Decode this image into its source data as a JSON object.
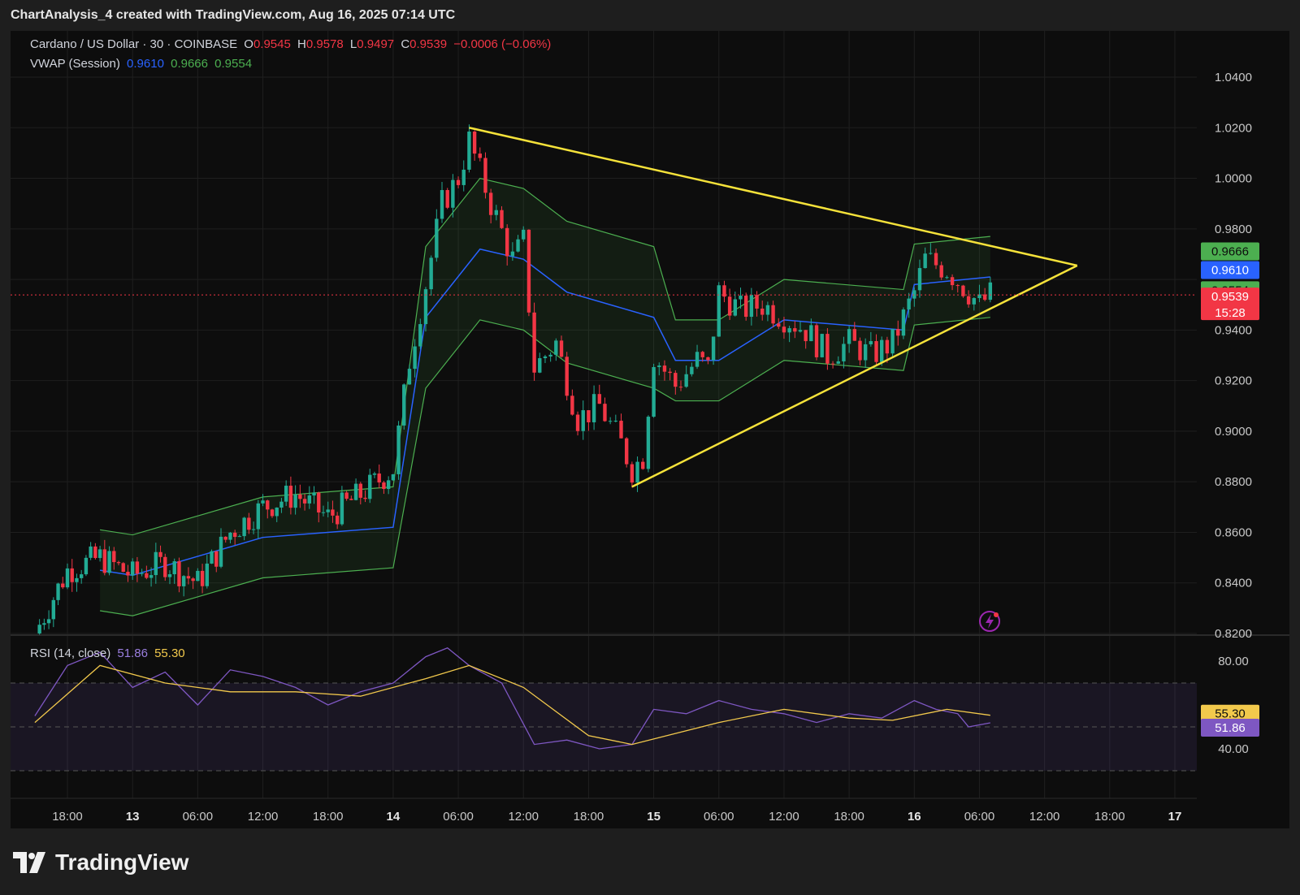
{
  "header": {
    "attribution": "ChartAnalysis_4 created with TradingView.com, Aug 16, 2025 07:14 UTC"
  },
  "legend": {
    "symbol": "Cardano / US Dollar · 30 · COINBASE",
    "open_label": "O",
    "open": "0.9545",
    "high_label": "H",
    "high": "0.9578",
    "low_label": "L",
    "low": "0.9497",
    "close_label": "C",
    "close": "0.9539",
    "change": "−0.0006 (−0.06%)",
    "vwap_label": "VWAP (Session)",
    "vwap_mid": "0.9610",
    "vwap_upper": "0.9666",
    "vwap_lower": "0.9554",
    "rsi_label": "RSI (14, close)",
    "rsi_value": "51.86",
    "rsi_ma": "55.30"
  },
  "price_badges": {
    "upper": "0.9666",
    "mid": "0.9610",
    "lower": "0.9554",
    "last": "0.9539",
    "countdown": "15:28",
    "rsi_ma": "55.30",
    "rsi": "51.86"
  },
  "footer": {
    "brand": "TradingView"
  },
  "colors": {
    "up": "#22ab94",
    "down": "#f23645",
    "vwap": "#2962ff",
    "band": "#4caf50",
    "triangle": "#f5e23a",
    "rsi": "#7e57c2",
    "rsi_ma": "#f2c94c"
  },
  "chart_data": {
    "type": "candlestick",
    "title": "Cardano / US Dollar · 30 · COINBASE",
    "y_ticks": [
      0.82,
      0.84,
      0.86,
      0.88,
      0.9,
      0.92,
      0.94,
      0.96,
      0.98,
      1.0,
      1.02,
      1.04
    ],
    "y_tick_labels": [
      "0.8200",
      "0.8400",
      "0.8600",
      "0.8800",
      "0.9000",
      "0.9200",
      "0.9400",
      "",
      "0.9800",
      "1.0000",
      "1.0200",
      "1.0400"
    ],
    "ylim": [
      0.82,
      1.06
    ],
    "x_tick_labels": [
      "18:00",
      "13",
      "06:00",
      "12:00",
      "18:00",
      "14",
      "06:00",
      "12:00",
      "18:00",
      "15",
      "06:00",
      "12:00",
      "18:00",
      "16",
      "06:00",
      "12:00",
      "18:00",
      "17"
    ],
    "x_tick_times": [
      "Aug 12 18:00",
      "Aug 13 00:00",
      "Aug 13 06:00",
      "Aug 13 12:00",
      "Aug 13 18:00",
      "Aug 14 00:00",
      "Aug 14 06:00",
      "Aug 14 12:00",
      "Aug 14 18:00",
      "Aug 15 00:00",
      "Aug 15 06:00",
      "Aug 15 12:00",
      "Aug 15 18:00",
      "Aug 16 00:00",
      "Aug 16 06:00",
      "Aug 16 12:00",
      "Aug 16 18:00",
      "Aug 17 00:00"
    ],
    "close_path": [
      {
        "t": "Aug 12 15:00",
        "c": 0.82
      },
      {
        "t": "Aug 12 18:00",
        "c": 0.845
      },
      {
        "t": "Aug 12 21:00",
        "c": 0.85
      },
      {
        "t": "Aug 13 00:00",
        "c": 0.843
      },
      {
        "t": "Aug 13 03:00",
        "c": 0.848
      },
      {
        "t": "Aug 13 06:00",
        "c": 0.84
      },
      {
        "t": "Aug 13 09:00",
        "c": 0.86
      },
      {
        "t": "Aug 13 12:00",
        "c": 0.87
      },
      {
        "t": "Aug 13 15:00",
        "c": 0.875
      },
      {
        "t": "Aug 13 18:00",
        "c": 0.866
      },
      {
        "t": "Aug 13 21:00",
        "c": 0.875
      },
      {
        "t": "Aug 14 00:00",
        "c": 0.885
      },
      {
        "t": "Aug 14 01:30",
        "c": 0.928
      },
      {
        "t": "Aug 14 03:00",
        "c": 0.958
      },
      {
        "t": "Aug 14 04:30",
        "c": 0.99
      },
      {
        "t": "Aug 14 06:00",
        "c": 1.0
      },
      {
        "t": "Aug 14 07:00",
        "c": 1.015
      },
      {
        "t": "Aug 14 09:00",
        "c": 0.99
      },
      {
        "t": "Aug 14 11:00",
        "c": 0.968
      },
      {
        "t": "Aug 14 12:00",
        "c": 0.975
      },
      {
        "t": "Aug 14 13:00",
        "c": 0.925
      },
      {
        "t": "Aug 14 15:00",
        "c": 0.935
      },
      {
        "t": "Aug 14 17:00",
        "c": 0.905
      },
      {
        "t": "Aug 14 19:00",
        "c": 0.91
      },
      {
        "t": "Aug 14 21:00",
        "c": 0.895
      },
      {
        "t": "Aug 14 22:00",
        "c": 0.885
      },
      {
        "t": "Aug 14 23:00",
        "c": 0.89
      },
      {
        "t": "Aug 15 00:00",
        "c": 0.93
      },
      {
        "t": "Aug 15 02:00",
        "c": 0.918
      },
      {
        "t": "Aug 15 04:00",
        "c": 0.928
      },
      {
        "t": "Aug 15 05:00",
        "c": 0.925
      },
      {
        "t": "Aug 15 06:00",
        "c": 0.955
      },
      {
        "t": "Aug 15 08:00",
        "c": 0.948
      },
      {
        "t": "Aug 15 10:00",
        "c": 0.95
      },
      {
        "t": "Aug 15 12:00",
        "c": 0.945
      },
      {
        "t": "Aug 15 14:00",
        "c": 0.94
      },
      {
        "t": "Aug 15 16:00",
        "c": 0.93
      },
      {
        "t": "Aug 15 18:00",
        "c": 0.935
      },
      {
        "t": "Aug 15 20:00",
        "c": 0.93
      },
      {
        "t": "Aug 15 22:00",
        "c": 0.935
      },
      {
        "t": "Aug 16 00:00",
        "c": 0.955
      },
      {
        "t": "Aug 16 01:00",
        "c": 0.968
      },
      {
        "t": "Aug 16 03:00",
        "c": 0.964
      },
      {
        "t": "Aug 16 05:00",
        "c": 0.955
      },
      {
        "t": "Aug 16 06:00",
        "c": 0.95
      },
      {
        "t": "Aug 16 07:00",
        "c": 0.9539
      }
    ],
    "vwap_session": {
      "mid": [
        {
          "t": "Aug 12 21:00",
          "v": 0.845
        },
        {
          "t": "Aug 13 00:00",
          "v": 0.843
        },
        {
          "t": "Aug 13 12:00",
          "v": 0.858
        },
        {
          "t": "Aug 14 00:00",
          "v": 0.862
        },
        {
          "t": "Aug 14 03:00",
          "v": 0.945
        },
        {
          "t": "Aug 14 08:00",
          "v": 0.972
        },
        {
          "t": "Aug 14 12:00",
          "v": 0.968
        },
        {
          "t": "Aug 14 16:00",
          "v": 0.955
        },
        {
          "t": "Aug 15 00:00",
          "v": 0.945
        },
        {
          "t": "Aug 15 02:00",
          "v": 0.928
        },
        {
          "t": "Aug 15 06:00",
          "v": 0.928
        },
        {
          "t": "Aug 15 12:00",
          "v": 0.944
        },
        {
          "t": "Aug 15 23:00",
          "v": 0.94
        },
        {
          "t": "Aug 16 00:00",
          "v": 0.958
        },
        {
          "t": "Aug 16 07:00",
          "v": 0.961
        }
      ],
      "upper_last": 0.9666,
      "lower_last": 0.9554
    },
    "triangle": {
      "upper_line": [
        {
          "t": "Aug 14 07:00",
          "y": 1.02
        },
        {
          "t": "Aug 16 15:00",
          "y": 0.9655
        }
      ],
      "lower_line": [
        {
          "t": "Aug 14 22:00",
          "y": 0.878
        },
        {
          "t": "Aug 16 15:00",
          "y": 0.9655
        }
      ]
    },
    "last_price": 0.9539,
    "rsi": {
      "ticks": [
        40.0,
        80.0
      ],
      "tick_labels": [
        "40.00",
        "80.00"
      ],
      "bands": [
        30,
        50,
        70
      ],
      "ylim": [
        30,
        90
      ],
      "rsi_last": 51.86,
      "ma_last": 55.3,
      "rsi_path": [
        {
          "t": "Aug 12 15:00",
          "v": 55
        },
        {
          "t": "Aug 12 18:00",
          "v": 78
        },
        {
          "t": "Aug 12 21:00",
          "v": 84
        },
        {
          "t": "Aug 13 00:00",
          "v": 68
        },
        {
          "t": "Aug 13 03:00",
          "v": 75
        },
        {
          "t": "Aug 13 06:00",
          "v": 60
        },
        {
          "t": "Aug 13 09:00",
          "v": 76
        },
        {
          "t": "Aug 13 12:00",
          "v": 73
        },
        {
          "t": "Aug 13 15:00",
          "v": 68
        },
        {
          "t": "Aug 13 18:00",
          "v": 60
        },
        {
          "t": "Aug 13 21:00",
          "v": 66
        },
        {
          "t": "Aug 14 00:00",
          "v": 70
        },
        {
          "t": "Aug 14 03:00",
          "v": 82
        },
        {
          "t": "Aug 14 05:00",
          "v": 86
        },
        {
          "t": "Aug 14 07:00",
          "v": 78
        },
        {
          "t": "Aug 14 10:00",
          "v": 70
        },
        {
          "t": "Aug 14 13:00",
          "v": 42
        },
        {
          "t": "Aug 14 16:00",
          "v": 44
        },
        {
          "t": "Aug 14 19:00",
          "v": 40
        },
        {
          "t": "Aug 14 22:00",
          "v": 42
        },
        {
          "t": "Aug 15 00:00",
          "v": 58
        },
        {
          "t": "Aug 15 03:00",
          "v": 56
        },
        {
          "t": "Aug 15 06:00",
          "v": 62
        },
        {
          "t": "Aug 15 09:00",
          "v": 58
        },
        {
          "t": "Aug 15 12:00",
          "v": 56
        },
        {
          "t": "Aug 15 15:00",
          "v": 52
        },
        {
          "t": "Aug 15 18:00",
          "v": 56
        },
        {
          "t": "Aug 15 21:00",
          "v": 54
        },
        {
          "t": "Aug 16 00:00",
          "v": 62
        },
        {
          "t": "Aug 16 02:00",
          "v": 58
        },
        {
          "t": "Aug 16 04:00",
          "v": 56
        },
        {
          "t": "Aug 16 05:00",
          "v": 50
        },
        {
          "t": "Aug 16 07:00",
          "v": 51.86
        }
      ],
      "ma_path": [
        {
          "t": "Aug 12 15:00",
          "v": 52
        },
        {
          "t": "Aug 12 21:00",
          "v": 78
        },
        {
          "t": "Aug 13 03:00",
          "v": 70
        },
        {
          "t": "Aug 13 09:00",
          "v": 66
        },
        {
          "t": "Aug 13 15:00",
          "v": 66
        },
        {
          "t": "Aug 13 21:00",
          "v": 64
        },
        {
          "t": "Aug 14 03:00",
          "v": 72
        },
        {
          "t": "Aug 14 07:00",
          "v": 78
        },
        {
          "t": "Aug 14 12:00",
          "v": 68
        },
        {
          "t": "Aug 14 18:00",
          "v": 46
        },
        {
          "t": "Aug 14 22:00",
          "v": 42
        },
        {
          "t": "Aug 15 06:00",
          "v": 52
        },
        {
          "t": "Aug 15 12:00",
          "v": 58
        },
        {
          "t": "Aug 15 18:00",
          "v": 54
        },
        {
          "t": "Aug 15 22:00",
          "v": 53
        },
        {
          "t": "Aug 16 03:00",
          "v": 58
        },
        {
          "t": "Aug 16 07:00",
          "v": 55.3
        }
      ]
    }
  }
}
